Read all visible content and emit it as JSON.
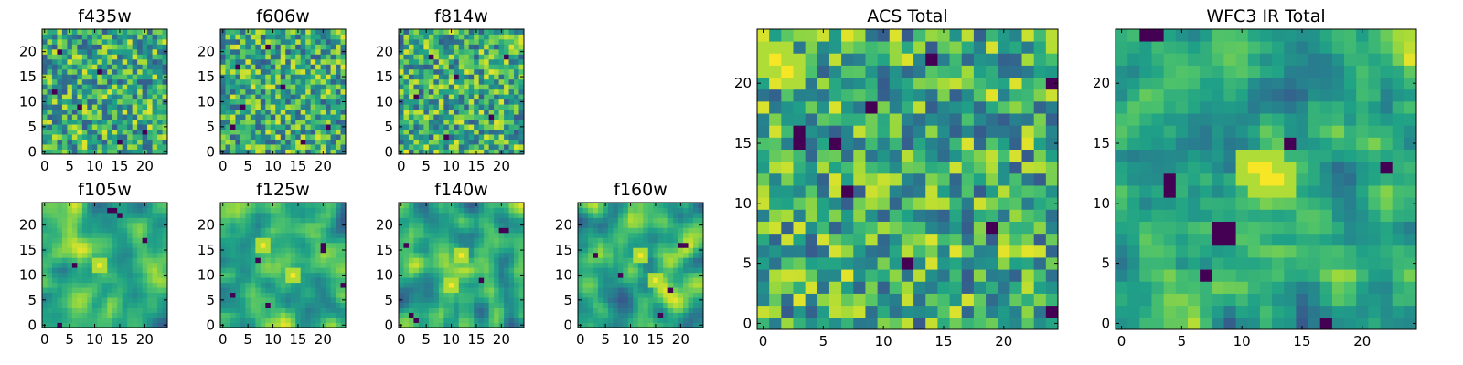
{
  "chart_data": [
    {
      "id": "f435w",
      "type": "heatmap",
      "title": "f435w",
      "grid_size": 25,
      "xticks": [
        "0",
        "5",
        "10",
        "15",
        "20"
      ],
      "yticks": [
        "0",
        "5",
        "10",
        "15",
        "20"
      ],
      "xlim": [
        0,
        25
      ],
      "ylim": [
        0,
        25
      ],
      "value_range": [
        0,
        1
      ],
      "smoothness": 0,
      "seed": 11,
      "dark_pixels": [
        [
          3,
          20
        ],
        [
          11,
          16
        ],
        [
          7,
          9
        ],
        [
          20,
          4
        ],
        [
          15,
          2
        ],
        [
          2,
          12
        ]
      ],
      "bright_spots": []
    },
    {
      "id": "f606w",
      "type": "heatmap",
      "title": "f606w",
      "grid_size": 25,
      "xticks": [
        "0",
        "5",
        "10",
        "15",
        "20"
      ],
      "yticks": [
        "0",
        "5",
        "10",
        "15",
        "20"
      ],
      "xlim": [
        0,
        25
      ],
      "ylim": [
        0,
        25
      ],
      "value_range": [
        0,
        1
      ],
      "smoothness": 0,
      "seed": 23,
      "dark_pixels": [
        [
          3,
          17
        ],
        [
          4,
          9
        ],
        [
          12,
          13
        ],
        [
          21,
          5
        ],
        [
          9,
          21
        ],
        [
          16,
          2
        ],
        [
          2,
          5
        ]
      ],
      "bright_spots": []
    },
    {
      "id": "f814w",
      "type": "heatmap",
      "title": "f814w",
      "grid_size": 25,
      "xticks": [
        "0",
        "5",
        "10",
        "15",
        "20"
      ],
      "yticks": [
        "0",
        "5",
        "10",
        "15",
        "20"
      ],
      "xlim": [
        0,
        25
      ],
      "ylim": [
        0,
        25
      ],
      "value_range": [
        0,
        1
      ],
      "smoothness": 0,
      "seed": 37,
      "dark_pixels": [
        [
          6,
          19
        ],
        [
          11,
          15
        ],
        [
          3,
          11
        ],
        [
          18,
          7
        ],
        [
          9,
          3
        ],
        [
          21,
          19
        ]
      ],
      "bright_spots": []
    },
    {
      "id": "f105w",
      "type": "heatmap",
      "title": "f105w",
      "grid_size": 25,
      "xticks": [
        "0",
        "5",
        "10",
        "15",
        "20"
      ],
      "yticks": [
        "0",
        "5",
        "10",
        "15",
        "20"
      ],
      "xlim": [
        0,
        25
      ],
      "ylim": [
        0,
        25
      ],
      "value_range": [
        0,
        1
      ],
      "smoothness": 2,
      "seed": 41,
      "dark_pixels": [
        [
          13,
          23
        ],
        [
          14,
          23
        ],
        [
          15,
          22
        ],
        [
          6,
          12
        ],
        [
          20,
          17
        ],
        [
          3,
          0
        ]
      ],
      "bright_spots": [
        [
          11,
          12
        ]
      ]
    },
    {
      "id": "f125w",
      "type": "heatmap",
      "title": "f125w",
      "grid_size": 25,
      "xticks": [
        "0",
        "5",
        "10",
        "15",
        "20"
      ],
      "yticks": [
        "0",
        "5",
        "10",
        "15",
        "20"
      ],
      "xlim": [
        0,
        25
      ],
      "ylim": [
        0,
        25
      ],
      "value_range": [
        0,
        1
      ],
      "smoothness": 2,
      "seed": 53,
      "dark_pixels": [
        [
          20,
          16
        ],
        [
          20,
          15
        ],
        [
          7,
          13
        ],
        [
          9,
          4
        ],
        [
          24,
          8
        ],
        [
          2,
          6
        ]
      ],
      "bright_spots": [
        [
          8,
          16
        ],
        [
          14,
          10
        ]
      ]
    },
    {
      "id": "f140w",
      "type": "heatmap",
      "title": "f140w",
      "grid_size": 25,
      "xticks": [
        "0",
        "5",
        "10",
        "15",
        "20"
      ],
      "yticks": [
        "0",
        "5",
        "10",
        "15",
        "20"
      ],
      "xlim": [
        0,
        25
      ],
      "ylim": [
        0,
        25
      ],
      "value_range": [
        0,
        1
      ],
      "smoothness": 2,
      "seed": 67,
      "dark_pixels": [
        [
          20,
          19
        ],
        [
          21,
          19
        ],
        [
          2,
          2
        ],
        [
          3,
          1
        ],
        [
          1,
          16
        ],
        [
          16,
          9
        ]
      ],
      "bright_spots": [
        [
          12,
          14
        ],
        [
          10,
          8
        ]
      ]
    },
    {
      "id": "f160w",
      "type": "heatmap",
      "title": "f160w",
      "grid_size": 25,
      "xticks": [
        "0",
        "5",
        "10",
        "15",
        "20"
      ],
      "yticks": [
        "0",
        "5",
        "10",
        "15",
        "20"
      ],
      "xlim": [
        0,
        25
      ],
      "ylim": [
        0,
        25
      ],
      "value_range": [
        0,
        1
      ],
      "smoothness": 2,
      "seed": 79,
      "dark_pixels": [
        [
          20,
          16
        ],
        [
          21,
          16
        ],
        [
          18,
          7
        ],
        [
          16,
          2
        ],
        [
          3,
          14
        ],
        [
          8,
          10
        ]
      ],
      "bright_spots": [
        [
          12,
          14
        ],
        [
          15,
          9
        ]
      ]
    },
    {
      "id": "acs_total",
      "type": "heatmap",
      "title": "ACS Total",
      "grid_size": 25,
      "xticks": [
        "0",
        "5",
        "10",
        "15",
        "20"
      ],
      "yticks": [
        "0",
        "5",
        "10",
        "15",
        "20"
      ],
      "xlim": [
        0,
        25
      ],
      "ylim": [
        0,
        25
      ],
      "value_range": [
        0,
        1
      ],
      "smoothness": 0,
      "seed": 97,
      "dark_pixels": [
        [
          3,
          16
        ],
        [
          3,
          15
        ],
        [
          6,
          15
        ],
        [
          7,
          11
        ],
        [
          9,
          18
        ],
        [
          14,
          22
        ],
        [
          19,
          8
        ],
        [
          24,
          20
        ],
        [
          24,
          1
        ],
        [
          12,
          5
        ]
      ],
      "bright_spots": [
        [
          1,
          22
        ],
        [
          2,
          21
        ]
      ]
    },
    {
      "id": "wfc3_ir_total",
      "type": "heatmap",
      "title": "WFC3 IR Total",
      "grid_size": 25,
      "xticks": [
        "0",
        "5",
        "10",
        "15",
        "20"
      ],
      "yticks": [
        "0",
        "5",
        "10",
        "15",
        "20"
      ],
      "xlim": [
        0,
        25
      ],
      "ylim": [
        0,
        25
      ],
      "value_range": [
        0,
        1
      ],
      "smoothness": 1,
      "seed": 101,
      "dark_pixels": [
        [
          2,
          24
        ],
        [
          3,
          24
        ],
        [
          4,
          12
        ],
        [
          4,
          11
        ],
        [
          8,
          8
        ],
        [
          9,
          8
        ],
        [
          8,
          7
        ],
        [
          9,
          7
        ],
        [
          7,
          4
        ],
        [
          17,
          0
        ],
        [
          22,
          13
        ],
        [
          14,
          15
        ]
      ],
      "bright_spots": [
        [
          12,
          13
        ],
        [
          11,
          13
        ],
        [
          13,
          12
        ],
        [
          12,
          12
        ]
      ]
    }
  ],
  "colormap": [
    "#440154",
    "#46327e",
    "#365c8d",
    "#277f8e",
    "#1fa187",
    "#4ac16d",
    "#a0da39",
    "#fde725"
  ]
}
